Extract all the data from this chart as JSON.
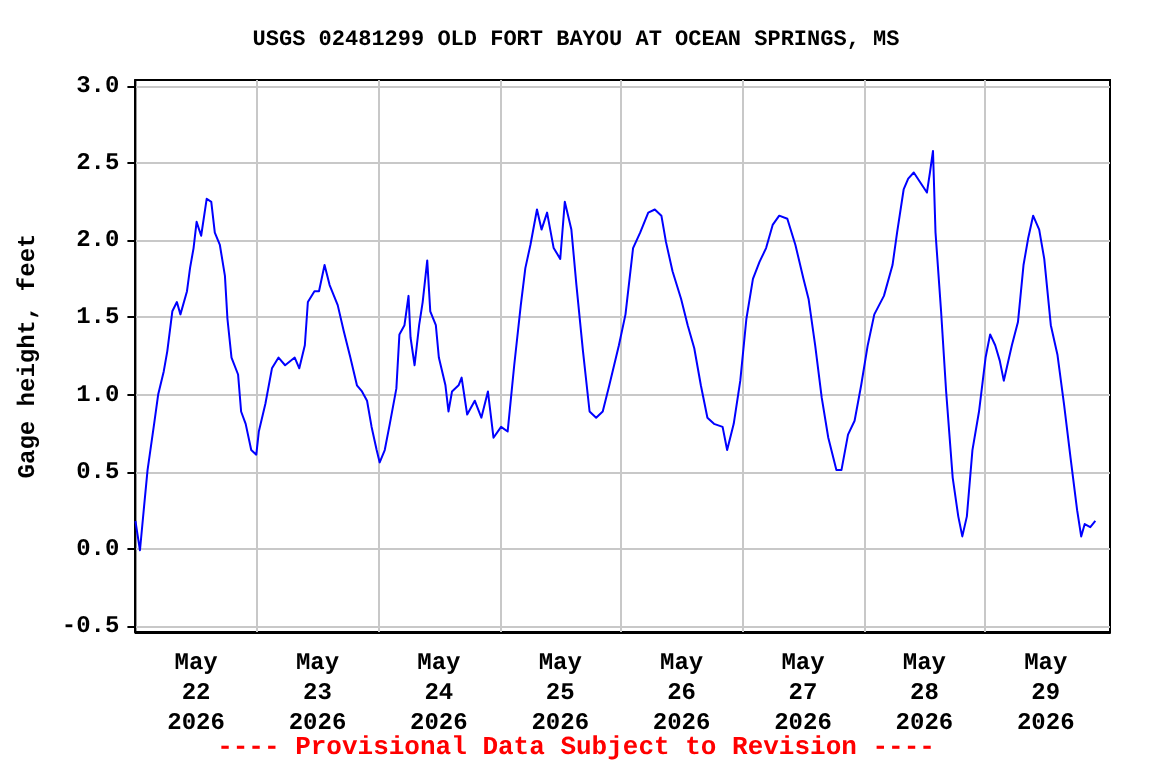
{
  "chart_data": {
    "type": "line",
    "title": "USGS 02481299 OLD FORT BAYOU AT OCEAN SPRINGS, MS",
    "ylabel": "Gage height, feet",
    "annotations": [
      "---- Provisional Data Subject to Revision ----"
    ],
    "grid": true,
    "marker": "none",
    "line_style": "solid",
    "xlim": [
      "2026-05-22T00:00",
      "2026-05-30T00:42"
    ],
    "ylim": [
      -0.54,
      3.04
    ],
    "xticks": [
      {
        "value": "2026-05-22T12:00",
        "label": "May\n22\n2026"
      },
      {
        "value": "2026-05-23T00:00",
        "label": null
      },
      {
        "value": "2026-05-23T12:00",
        "label": "May\n23\n2026"
      },
      {
        "value": "2026-05-24T00:00",
        "label": null
      },
      {
        "value": "2026-05-24T12:00",
        "label": "May\n24\n2026"
      },
      {
        "value": "2026-05-25T00:00",
        "label": null
      },
      {
        "value": "2026-05-25T12:00",
        "label": "May\n25\n2026"
      },
      {
        "value": "2026-05-26T00:00",
        "label": null
      },
      {
        "value": "2026-05-26T12:00",
        "label": "May\n26\n2026"
      },
      {
        "value": "2026-05-27T00:00",
        "label": null
      },
      {
        "value": "2026-05-27T12:00",
        "label": "May\n27\n2026"
      },
      {
        "value": "2026-05-28T00:00",
        "label": null
      },
      {
        "value": "2026-05-28T12:00",
        "label": "May\n28\n2026"
      },
      {
        "value": "2026-05-29T00:00",
        "label": null
      },
      {
        "value": "2026-05-29T12:00",
        "label": "May\n29\n2026"
      }
    ],
    "yticks": [
      {
        "value": -0.5,
        "label": "-0.5"
      },
      {
        "value": 0,
        "label": "0.0"
      },
      {
        "value": 0.5,
        "label": "0.5"
      },
      {
        "value": 1,
        "label": "1.0"
      },
      {
        "value": 1.5,
        "label": "1.5"
      },
      {
        "value": 2,
        "label": "2.0"
      },
      {
        "value": 2.5,
        "label": "2.5"
      },
      {
        "value": 3,
        "label": "3.0"
      }
    ],
    "series": [
      {
        "color": "#0000ff",
        "x": [
          "2026-05-22T00:00",
          "2026-05-22T00:54",
          "2026-05-22T01:42",
          "2026-05-22T02:24",
          "2026-05-22T03:42",
          "2026-05-22T04:30",
          "2026-05-22T05:36",
          "2026-05-22T06:18",
          "2026-05-22T07:18",
          "2026-05-22T08:12",
          "2026-05-22T08:54",
          "2026-05-22T10:12",
          "2026-05-22T10:48",
          "2026-05-22T11:30",
          "2026-05-22T12:06",
          "2026-05-22T13:00",
          "2026-05-22T14:06",
          "2026-05-22T15:00",
          "2026-05-22T15:42",
          "2026-05-22T16:42",
          "2026-05-22T17:42",
          "2026-05-22T18:12",
          "2026-05-22T19:00",
          "2026-05-22T20:18",
          "2026-05-22T20:54",
          "2026-05-22T21:48",
          "2026-05-22T22:54",
          "2026-05-22T23:54",
          "2026-05-23T00:24",
          "2026-05-23T01:42",
          "2026-05-23T03:00",
          "2026-05-23T04:18",
          "2026-05-23T05:36",
          "2026-05-23T07:30",
          "2026-05-23T08:24",
          "2026-05-23T09:30",
          "2026-05-23T10:06",
          "2026-05-23T11:24",
          "2026-05-23T12:18",
          "2026-05-23T13:24",
          "2026-05-23T14:24",
          "2026-05-23T16:00",
          "2026-05-23T17:12",
          "2026-05-23T18:30",
          "2026-05-23T19:48",
          "2026-05-23T20:48",
          "2026-05-23T21:48",
          "2026-05-23T22:42",
          "2026-05-23T23:42",
          "2026-05-24T00:18",
          "2026-05-24T01:18",
          "2026-05-24T02:18",
          "2026-05-24T03:36",
          "2026-05-24T04:12",
          "2026-05-24T05:12",
          "2026-05-24T06:00",
          "2026-05-24T06:24",
          "2026-05-24T07:12",
          "2026-05-24T08:06",
          "2026-05-24T08:48",
          "2026-05-24T09:42",
          "2026-05-24T10:18",
          "2026-05-24T11:24",
          "2026-05-24T12:00",
          "2026-05-24T13:18",
          "2026-05-24T13:54",
          "2026-05-24T14:36",
          "2026-05-24T15:54",
          "2026-05-24T16:30",
          "2026-05-24T17:36",
          "2026-05-24T19:06",
          "2026-05-24T20:24",
          "2026-05-24T21:42",
          "2026-05-24T22:48",
          "2026-05-25T00:18",
          "2026-05-25T01:36",
          "2026-05-25T02:54",
          "2026-05-25T04:12",
          "2026-05-25T05:06",
          "2026-05-25T06:06",
          "2026-05-25T07:24",
          "2026-05-25T08:18",
          "2026-05-25T09:24",
          "2026-05-25T10:42",
          "2026-05-25T12:00",
          "2026-05-25T12:54",
          "2026-05-25T14:12",
          "2026-05-25T15:12",
          "2026-05-25T16:30",
          "2026-05-25T17:48",
          "2026-05-25T19:06",
          "2026-05-25T20:24",
          "2026-05-25T21:42",
          "2026-05-25T23:36",
          "2026-05-26T00:54",
          "2026-05-26T02:24",
          "2026-05-26T03:48",
          "2026-05-26T05:24",
          "2026-05-26T06:42",
          "2026-05-26T08:00",
          "2026-05-26T08:54",
          "2026-05-26T10:12",
          "2026-05-26T11:54",
          "2026-05-26T13:12",
          "2026-05-26T14:30",
          "2026-05-26T15:48",
          "2026-05-26T17:06",
          "2026-05-26T18:24",
          "2026-05-26T20:06",
          "2026-05-26T21:00",
          "2026-05-26T22:18",
          "2026-05-26T23:36",
          "2026-05-27T00:48",
          "2026-05-27T02:06",
          "2026-05-27T03:24",
          "2026-05-27T04:42",
          "2026-05-27T06:00",
          "2026-05-27T07:18",
          "2026-05-27T08:54",
          "2026-05-27T10:30",
          "2026-05-27T12:06",
          "2026-05-27T13:06",
          "2026-05-27T14:24",
          "2026-05-27T15:42",
          "2026-05-27T17:00",
          "2026-05-27T18:36",
          "2026-05-27T19:36",
          "2026-05-27T20:54",
          "2026-05-27T22:12",
          "2026-05-27T23:30",
          "2026-05-28T00:48",
          "2026-05-28T02:06",
          "2026-05-28T04:00",
          "2026-05-28T05:42",
          "2026-05-28T06:36",
          "2026-05-28T07:54",
          "2026-05-28T08:48",
          "2026-05-28T09:54",
          "2026-05-28T11:06",
          "2026-05-28T12:30",
          "2026-05-28T13:06",
          "2026-05-28T13:42",
          "2026-05-28T14:12",
          "2026-05-28T15:18",
          "2026-05-28T16:18",
          "2026-05-28T17:36",
          "2026-05-28T18:42",
          "2026-05-28T19:30",
          "2026-05-28T20:24",
          "2026-05-28T21:30",
          "2026-05-28T22:48",
          "2026-05-29T00:06",
          "2026-05-29T01:00",
          "2026-05-29T02:00",
          "2026-05-29T02:54",
          "2026-05-29T03:42",
          "2026-05-29T05:18",
          "2026-05-29T06:30",
          "2026-05-29T07:36",
          "2026-05-29T08:30",
          "2026-05-29T09:30",
          "2026-05-29T10:42",
          "2026-05-29T11:42",
          "2026-05-29T13:00",
          "2026-05-29T14:18",
          "2026-05-29T15:36",
          "2026-05-29T16:54",
          "2026-05-29T18:12",
          "2026-05-29T19:00",
          "2026-05-29T19:42",
          "2026-05-29T20:48",
          "2026-05-29T21:48"
        ],
        "values": [
          0.18,
          -0.01,
          0.27,
          0.51,
          0.81,
          1.0,
          1.15,
          1.28,
          1.54,
          1.6,
          1.52,
          1.67,
          1.82,
          1.95,
          2.12,
          2.03,
          2.27,
          2.25,
          2.05,
          1.97,
          1.77,
          1.49,
          1.24,
          1.13,
          0.89,
          0.81,
          0.64,
          0.61,
          0.76,
          0.94,
          1.17,
          1.24,
          1.19,
          1.24,
          1.17,
          1.32,
          1.6,
          1.67,
          1.67,
          1.84,
          1.71,
          1.58,
          1.41,
          1.24,
          1.06,
          1.02,
          0.96,
          0.79,
          0.64,
          0.56,
          0.64,
          0.81,
          1.04,
          1.39,
          1.45,
          1.64,
          1.37,
          1.19,
          1.45,
          1.6,
          1.87,
          1.54,
          1.45,
          1.24,
          1.06,
          0.89,
          1.02,
          1.06,
          1.11,
          0.87,
          0.96,
          0.85,
          1.02,
          0.72,
          0.79,
          0.76,
          1.19,
          1.58,
          1.82,
          1.97,
          2.2,
          2.07,
          2.18,
          1.95,
          1.88,
          2.25,
          2.07,
          1.71,
          1.28,
          0.89,
          0.85,
          0.89,
          1.06,
          1.32,
          1.52,
          1.95,
          2.05,
          2.18,
          2.2,
          2.16,
          1.99,
          1.8,
          1.62,
          1.45,
          1.3,
          1.06,
          0.85,
          0.81,
          0.79,
          0.64,
          0.81,
          1.09,
          1.49,
          1.75,
          1.86,
          1.95,
          2.1,
          2.16,
          2.14,
          1.97,
          1.75,
          1.62,
          1.32,
          0.98,
          0.72,
          0.51,
          0.51,
          0.74,
          0.83,
          1.06,
          1.32,
          1.52,
          1.64,
          1.84,
          2.05,
          2.33,
          2.4,
          2.44,
          2.38,
          2.31,
          2.44,
          2.58,
          2.05,
          1.54,
          1.02,
          0.46,
          0.21,
          0.08,
          0.21,
          0.64,
          0.89,
          1.24,
          1.39,
          1.32,
          1.22,
          1.09,
          1.32,
          1.47,
          1.84,
          2.01,
          2.16,
          2.07,
          1.88,
          1.45,
          1.26,
          0.94,
          0.59,
          0.25,
          0.08,
          0.16,
          0.14,
          0.18
        ]
      }
    ]
  }
}
